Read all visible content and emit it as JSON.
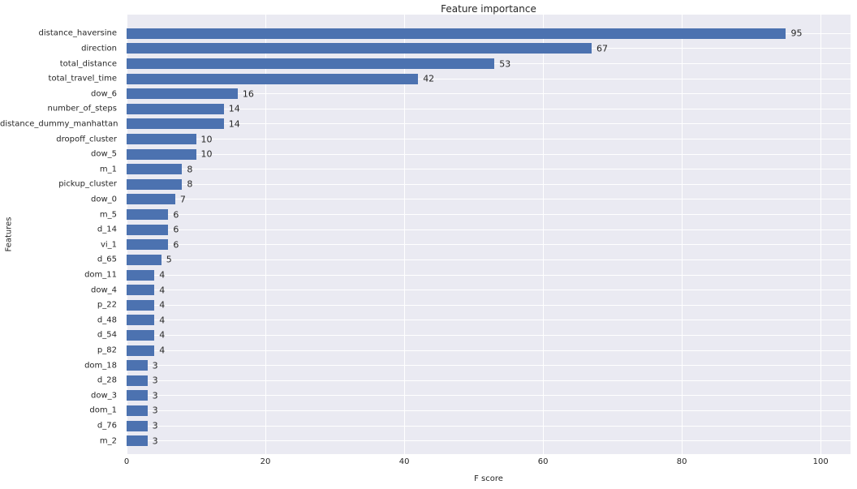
{
  "chart_data": {
    "type": "bar",
    "orientation": "horizontal",
    "title": "Feature importance",
    "xlabel": "F score",
    "ylabel": "Features",
    "categories": [
      "distance_haversine",
      "direction",
      "total_distance",
      "total_travel_time",
      "dow_6",
      "number_of_steps",
      "distance_dummy_manhattan",
      "dropoff_cluster",
      "dow_5",
      "m_1",
      "pickup_cluster",
      "dow_0",
      "m_5",
      "d_14",
      "vi_1",
      "d_65",
      "dom_11",
      "dow_4",
      "p_22",
      "d_48",
      "d_54",
      "p_82",
      "dom_18",
      "d_28",
      "dow_3",
      "dom_1",
      "d_76",
      "m_2"
    ],
    "values": [
      95,
      67,
      53,
      42,
      16,
      14,
      14,
      10,
      10,
      8,
      8,
      7,
      6,
      6,
      6,
      5,
      4,
      4,
      4,
      4,
      4,
      4,
      3,
      3,
      3,
      3,
      3,
      3
    ],
    "xticks": [
      0,
      20,
      40,
      60,
      80,
      100
    ],
    "xlim": [
      0,
      104.3
    ],
    "grid": true,
    "value_labels": true,
    "legend": null
  },
  "colors": {
    "bar": "#4c72b0",
    "plot_background": "#eaeaf2",
    "grid": "#ffffff",
    "text": "#262626",
    "figure_background": "#ffffff"
  }
}
